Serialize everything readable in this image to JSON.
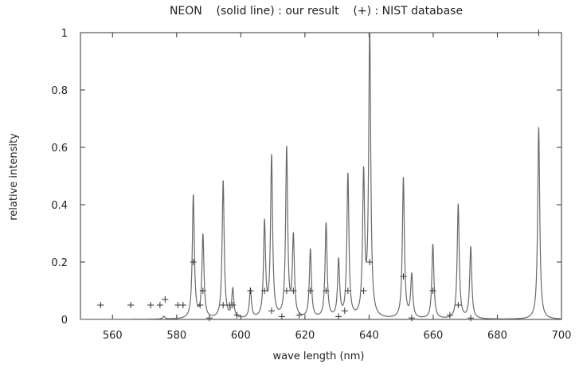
{
  "chart_data": {
    "type": "line",
    "title": "NEON    (solid line) : our result    (+) : NIST database",
    "xlabel": "wave length (nm)",
    "ylabel": "relative intensity",
    "xlim": [
      550,
      700
    ],
    "ylim": [
      0,
      1
    ],
    "xticks": [
      560,
      580,
      600,
      620,
      640,
      660,
      680,
      700
    ],
    "yticks": [
      0,
      0.2,
      0.4,
      0.6,
      0.8,
      1
    ],
    "ytick_labels": [
      "0",
      "0.2",
      "0.4",
      "0.6",
      "0.8",
      "1"
    ],
    "grid": false,
    "series": [
      {
        "name": "(solid line) : our result",
        "style": "line",
        "color": "#6a6a6a",
        "peaks": [
          {
            "x": 576.0,
            "y": 0.01
          },
          {
            "x": 585.2,
            "y": 0.43
          },
          {
            "x": 588.2,
            "y": 0.29
          },
          {
            "x": 594.5,
            "y": 0.48
          },
          {
            "x": 597.5,
            "y": 0.1
          },
          {
            "x": 603.0,
            "y": 0.1
          },
          {
            "x": 607.4,
            "y": 0.33
          },
          {
            "x": 609.6,
            "y": 0.56
          },
          {
            "x": 614.3,
            "y": 0.59
          },
          {
            "x": 616.4,
            "y": 0.28
          },
          {
            "x": 621.7,
            "y": 0.24
          },
          {
            "x": 626.6,
            "y": 0.33
          },
          {
            "x": 630.5,
            "y": 0.2
          },
          {
            "x": 633.4,
            "y": 0.5
          },
          {
            "x": 638.3,
            "y": 0.49
          },
          {
            "x": 640.2,
            "y": 1.0
          },
          {
            "x": 650.7,
            "y": 0.49
          },
          {
            "x": 653.3,
            "y": 0.15
          },
          {
            "x": 659.9,
            "y": 0.26
          },
          {
            "x": 667.8,
            "y": 0.4
          },
          {
            "x": 671.7,
            "y": 0.25
          },
          {
            "x": 692.9,
            "y": 0.67
          }
        ]
      },
      {
        "name": "(+) : NIST database",
        "style": "marker",
        "color": "#333333",
        "points": [
          {
            "x": 556.3,
            "y": 0.05
          },
          {
            "x": 565.7,
            "y": 0.05
          },
          {
            "x": 571.9,
            "y": 0.05
          },
          {
            "x": 574.8,
            "y": 0.05
          },
          {
            "x": 576.4,
            "y": 0.07
          },
          {
            "x": 580.4,
            "y": 0.05
          },
          {
            "x": 582.0,
            "y": 0.05
          },
          {
            "x": 585.2,
            "y": 0.2
          },
          {
            "x": 587.3,
            "y": 0.05
          },
          {
            "x": 588.2,
            "y": 0.1
          },
          {
            "x": 590.2,
            "y": 0.005
          },
          {
            "x": 594.5,
            "y": 0.05
          },
          {
            "x": 596.5,
            "y": 0.05
          },
          {
            "x": 597.5,
            "y": 0.05
          },
          {
            "x": 598.8,
            "y": 0.015
          },
          {
            "x": 603.0,
            "y": 0.1
          },
          {
            "x": 607.4,
            "y": 0.1
          },
          {
            "x": 609.6,
            "y": 0.03
          },
          {
            "x": 612.8,
            "y": 0.01
          },
          {
            "x": 614.3,
            "y": 0.1
          },
          {
            "x": 616.4,
            "y": 0.1
          },
          {
            "x": 618.2,
            "y": 0.015
          },
          {
            "x": 621.7,
            "y": 0.1
          },
          {
            "x": 626.6,
            "y": 0.1
          },
          {
            "x": 630.5,
            "y": 0.01
          },
          {
            "x": 632.4,
            "y": 0.03
          },
          {
            "x": 633.4,
            "y": 0.1
          },
          {
            "x": 638.3,
            "y": 0.1
          },
          {
            "x": 640.2,
            "y": 0.2
          },
          {
            "x": 650.7,
            "y": 0.15
          },
          {
            "x": 653.3,
            "y": 0.005
          },
          {
            "x": 659.9,
            "y": 0.1
          },
          {
            "x": 665.2,
            "y": 0.015
          },
          {
            "x": 667.8,
            "y": 0.05
          },
          {
            "x": 671.7,
            "y": 0.005
          },
          {
            "x": 692.9,
            "y": 1.0
          }
        ]
      }
    ]
  }
}
